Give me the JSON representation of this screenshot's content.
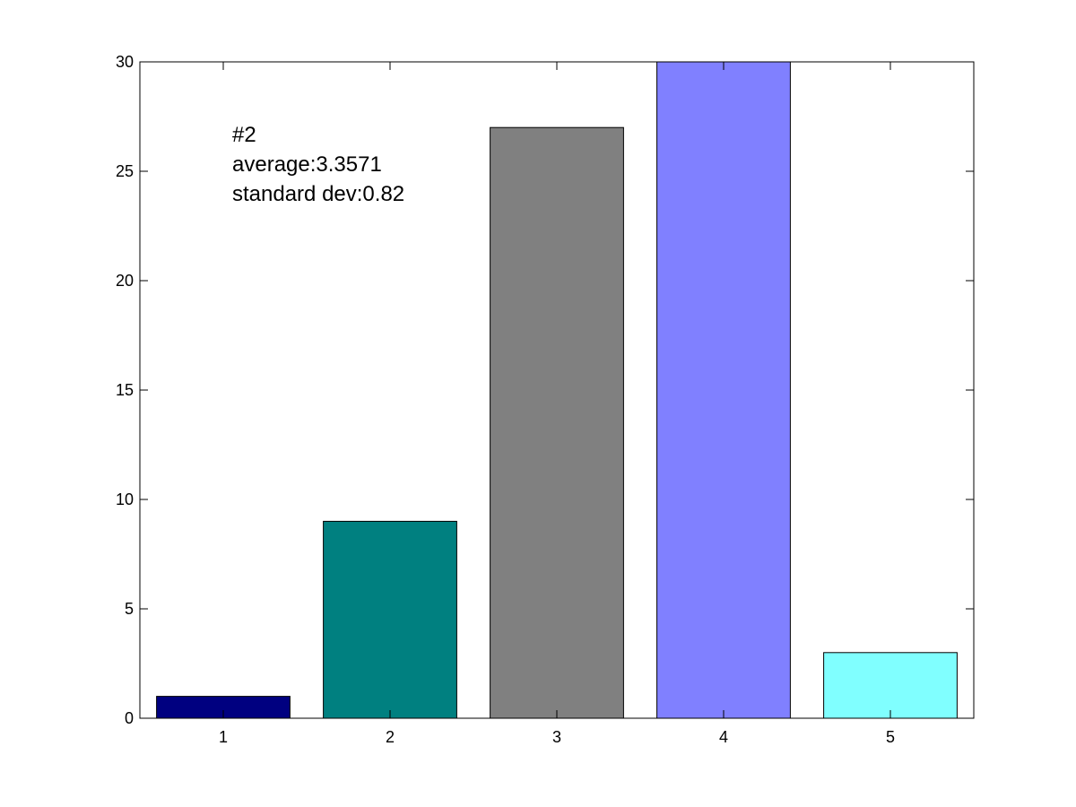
{
  "chart_data": {
    "type": "bar",
    "title": "",
    "xlabel": "",
    "ylabel": "",
    "categories": [
      "1",
      "2",
      "3",
      "4",
      "5"
    ],
    "values": [
      1,
      9,
      27,
      30,
      3
    ],
    "bar_colors": [
      "#000080",
      "#008080",
      "#808080",
      "#8080FF",
      "#80FFFF"
    ],
    "ylim": [
      0,
      30
    ],
    "yticks": [
      "0",
      "5",
      "10",
      "15",
      "20",
      "25",
      "30"
    ],
    "grid": false,
    "legend": "none",
    "annotations": [
      "#2",
      "average:3.3571",
      "standard dev:0.82"
    ]
  }
}
